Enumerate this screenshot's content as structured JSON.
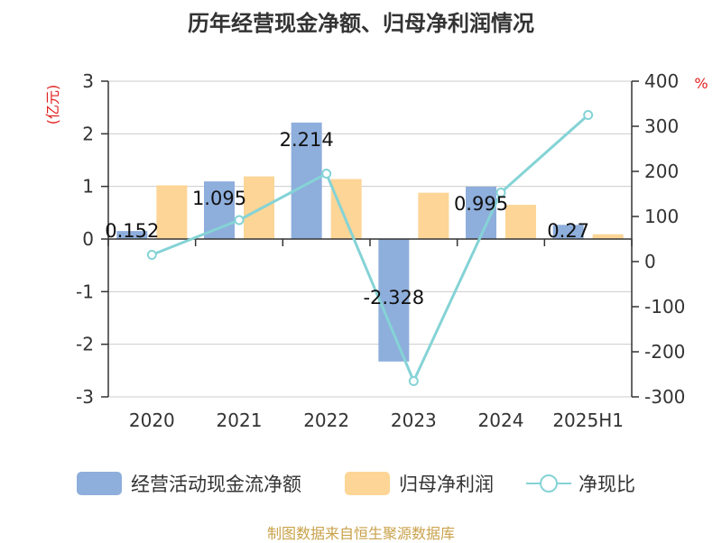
{
  "title": "历年经营现金净额、归母净利润情况",
  "source": "制图数据来自恒生聚源数据库",
  "colors": {
    "cash": "#8EAEDC",
    "profit": "#FDD596",
    "ratio": "#85D3D6"
  },
  "chart_data": {
    "type": "bar",
    "categories": [
      "2020",
      "2021",
      "2022",
      "2023",
      "2024",
      "2025H1"
    ],
    "y_left": {
      "label": "(亿元)",
      "ticks": [
        3,
        2,
        1,
        0,
        -1,
        -2,
        -3
      ],
      "min": -3,
      "max": 3
    },
    "y_right": {
      "label": "%",
      "ticks": [
        400,
        300,
        200,
        100,
        0,
        -100,
        -200,
        -300
      ],
      "min": -300,
      "max": 400
    },
    "series": [
      {
        "name": "经营活动现金流净额",
        "type": "bar",
        "axis": "left",
        "values": [
          0.152,
          1.095,
          2.214,
          -2.328,
          0.995,
          0.27
        ],
        "labels": [
          "0.152",
          "1.095",
          "2.214",
          "-2.328",
          "0.995",
          "0.27"
        ]
      },
      {
        "name": "归母净利润",
        "type": "bar",
        "axis": "left",
        "values": [
          1.02,
          1.19,
          1.14,
          0.88,
          0.65,
          0.09
        ]
      },
      {
        "name": "净现比",
        "type": "line",
        "axis": "right",
        "values": [
          15,
          92,
          195,
          -265,
          153,
          325
        ]
      }
    ],
    "grid": true,
    "legend_position": "bottom"
  }
}
